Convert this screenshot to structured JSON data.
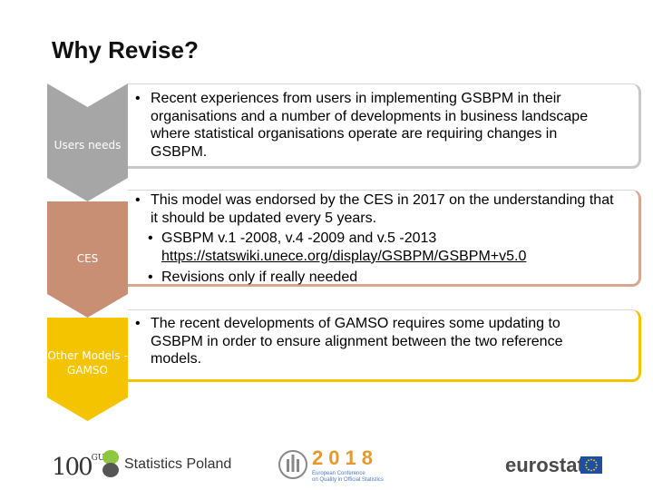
{
  "slide": {
    "title": "Why Revise?"
  },
  "chevrons": [
    {
      "label": "Users needs",
      "color": "#a6a6a6"
    },
    {
      "label": "CES",
      "color": "#c98f75"
    },
    {
      "label_line1": "Other Models -",
      "label_line2": "GAMSO",
      "color": "#f5c400"
    }
  ],
  "boxes": [
    {
      "bullets": [
        {
          "marker": "•",
          "text": "Recent experiences from users in implementing GSBPM in their organisations and a number of developments in business landscape where statistical organisations operate are requiring changes in GSBPM."
        }
      ]
    },
    {
      "bullets": [
        {
          "marker": "•",
          "text": "This model was endorsed by the CES in 2017 on the understanding that it should be updated every 5 years."
        }
      ],
      "sub_bullets": [
        {
          "marker": "•",
          "text": "GSBPM v.1 -2008, v.4 -2009 and v.5 -2013",
          "link": "https://statswiki.unece.org/display/GSBPM/GSBPM+v5.0"
        },
        {
          "marker": "•",
          "text": "Revisions only if really needed"
        }
      ]
    },
    {
      "bullets": [
        {
          "marker": "•",
          "text": "The recent developments of GAMSO requires some updating to GSBPM in order to ensure alignment between the two reference models."
        }
      ]
    }
  ],
  "footer": {
    "logo_100": "100",
    "logo_100_small": "GUS",
    "statistics_poland": "Statistics Poland",
    "conference_year": "2018",
    "conference_line1": "European Conference",
    "conference_line2": "on Quality in Official Statistics",
    "eurostat": "eurostat",
    "colors": {
      "year": "#e39a2c",
      "eu_blue": "#1f4fa3",
      "eu_star": "#ffdd00"
    }
  }
}
